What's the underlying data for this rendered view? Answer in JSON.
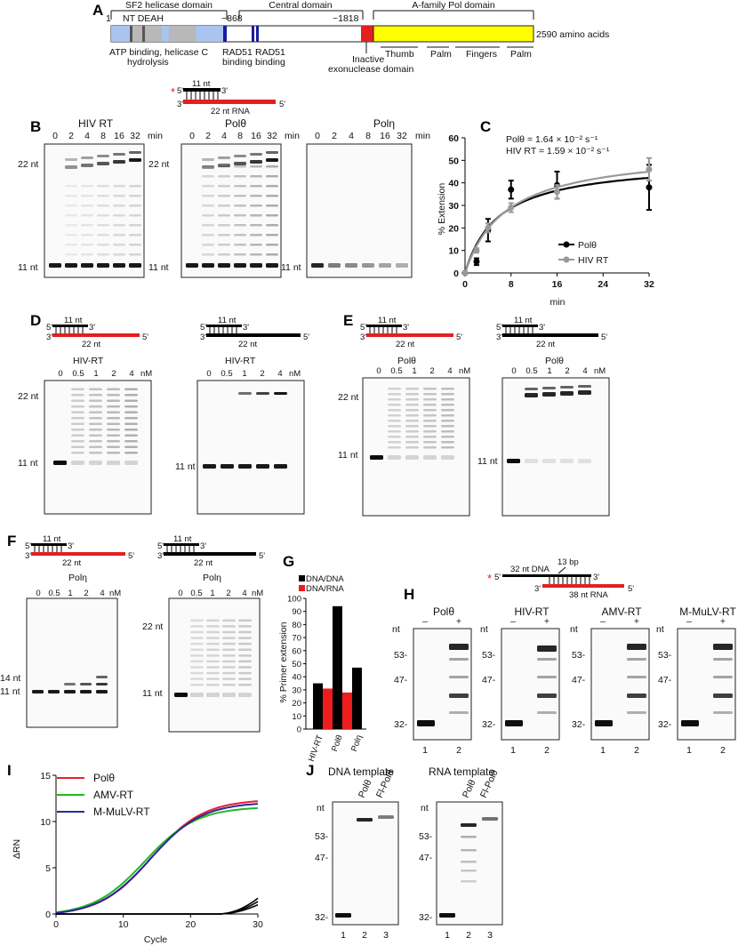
{
  "panels": {
    "A": "A",
    "B": "B",
    "C": "C",
    "D": "D",
    "E": "E",
    "F": "F",
    "G": "G",
    "H": "H",
    "I": "I",
    "J": "J"
  },
  "panelA": {
    "domains": [
      "SF2 helicase domain",
      "Central domain",
      "A-family Pol domain"
    ],
    "start": "1",
    "nt_deah": "NT DEAH",
    "pos868": "~868",
    "pos1818": "~1818",
    "end": "2590 amino acids",
    "atp": "ATP binding, helicase C",
    "hydrolysis": "hydrolysis",
    "rad51a": "RAD51",
    "rad51a2": "binding",
    "rad51b": "RAD51",
    "rad51b2": "binding",
    "inactive": "Inactive",
    "exo": "exonuclease domain",
    "subdomains": [
      "Thumb",
      "Palm",
      "Fingers",
      "Palm"
    ],
    "colors": {
      "helicase": "#a9c4ee",
      "helicase_grey": "#b8b8b8",
      "rad51": "#1a1aa0",
      "exo": "#e32020",
      "pol": "#ffff00"
    }
  },
  "substrateB": {
    "p5": "5'",
    "p3": "3'",
    "nt11": "11 nt",
    "t3": "3'",
    "t5": "5'",
    "rna22": "22 nt RNA",
    "star": "*"
  },
  "panelB": {
    "gels": [
      {
        "title": "HIV RT",
        "times": [
          "0",
          "2",
          "4",
          "8",
          "16",
          "32"
        ],
        "unit": "min"
      },
      {
        "title": "Polθ",
        "times": [
          "0",
          "2",
          "4",
          "8",
          "16",
          "32"
        ],
        "unit": "min"
      },
      {
        "title": "Polη",
        "times": [
          "0",
          "2",
          "4",
          "8",
          "16",
          "32"
        ],
        "unit": "min"
      }
    ],
    "m22": "22 nt",
    "m11": "11 nt"
  },
  "chart_data": {
    "type": "line",
    "xlabel": "min",
    "ylabel": "% Extension",
    "xticks": [
      0,
      8,
      16,
      24,
      32
    ],
    "yticks": [
      0,
      10,
      20,
      30,
      40,
      50,
      60
    ],
    "xlim": [
      0,
      32
    ],
    "ylim": [
      0,
      60
    ],
    "annotation1": "Polθ = 1.64 × 10⁻² s⁻¹",
    "annotation2": "HIV RT = 1.59 × 10⁻² s⁻¹",
    "legend_position": "bottom-right",
    "series": [
      {
        "name": "Polθ",
        "color": "#000000",
        "x": [
          0,
          2,
          4,
          8,
          16,
          32
        ],
        "y": [
          0,
          5,
          19,
          37,
          39,
          38
        ],
        "err": [
          0,
          1.5,
          5,
          4,
          6,
          10
        ]
      },
      {
        "name": "HIV RT",
        "color": "#999999",
        "x": [
          0,
          2,
          4,
          8,
          16,
          32
        ],
        "y": [
          0,
          10,
          20,
          29,
          36,
          46
        ],
        "err": [
          0,
          1,
          2,
          2,
          3,
          5
        ]
      }
    ]
  },
  "dnaSub": {
    "p5": "5'",
    "p3": "3'",
    "nt11": "11 nt",
    "t3": "3'",
    "t5": "5'",
    "nt22": "22 nt"
  },
  "panelD": {
    "gels": [
      {
        "title": "HIV-RT"
      },
      {
        "title": "HIV-RT"
      }
    ],
    "conc": [
      "0",
      "0.5",
      "1",
      "2",
      "4"
    ],
    "unit": "nM",
    "m22": "22 nt",
    "m11": "11 nt"
  },
  "panelE": {
    "gels": [
      {
        "title": "Polθ"
      },
      {
        "title": "Polθ"
      }
    ],
    "conc": [
      "0",
      "0.5",
      "1",
      "2",
      "4"
    ],
    "unit": "nM",
    "m22": "22 nt",
    "m11": "11 nt"
  },
  "panelF": {
    "gels": [
      {
        "title": "Polη"
      },
      {
        "title": "Polη"
      }
    ],
    "conc": [
      "0",
      "0.5",
      "1",
      "2",
      "4"
    ],
    "unit": "nM",
    "m14": "14 nt",
    "m11": "11 nt",
    "m22": "22 nt"
  },
  "panelG": {
    "chart_type": "bar",
    "ylabel": "% Primer extension",
    "legend": [
      "DNA/DNA",
      "DNA/RNA"
    ],
    "categories": [
      "HIV-RT",
      "Polθ",
      "Polη"
    ],
    "dna": [
      35,
      94,
      47
    ],
    "rna": [
      31,
      28,
      null
    ],
    "yticks": [
      0,
      10,
      20,
      30,
      40,
      50,
      60,
      70,
      80,
      90,
      100
    ],
    "colors": {
      "dna": "#000000",
      "rna": "#ee1c1c"
    }
  },
  "substrateH": {
    "star": "*",
    "p5": "5'",
    "dna32": "32 nt DNA",
    "bp13": "13 bp",
    "p3": "3'",
    "t3": "3'",
    "rna38": "38 nt RNA",
    "t5": "5'"
  },
  "panelH": {
    "gels": [
      {
        "title": "Polθ"
      },
      {
        "title": "HIV-RT"
      },
      {
        "title": "AMV-RT"
      },
      {
        "title": "M-MuLV-RT"
      }
    ],
    "minus": "–",
    "plus": "+",
    "nt": "nt",
    "m53": "53-",
    "m47": "47-",
    "m32": "32-",
    "lanes": [
      "1",
      "2"
    ]
  },
  "panelI": {
    "xlabel": "Cycle",
    "ylabel": "ΔRN",
    "xticks": [
      "0",
      "10",
      "20",
      "30"
    ],
    "yticks": [
      "0",
      "5",
      "10",
      "15"
    ],
    "legend": [
      {
        "name": "Polθ",
        "color": "#e8202a"
      },
      {
        "name": "AMV-RT",
        "color": "#22b822"
      },
      {
        "name": "M-MuLV-RT",
        "color": "#2a2a9c"
      }
    ]
  },
  "panelJ": {
    "gels": [
      {
        "title": "DNA template"
      },
      {
        "title": "RNA template"
      }
    ],
    "lanes": [
      "Polθ",
      "Fl-Polθ"
    ],
    "nt": "nt",
    "m53": "53-",
    "m47": "47-",
    "m32": "32-",
    "nums": [
      "1",
      "2",
      "3"
    ]
  }
}
